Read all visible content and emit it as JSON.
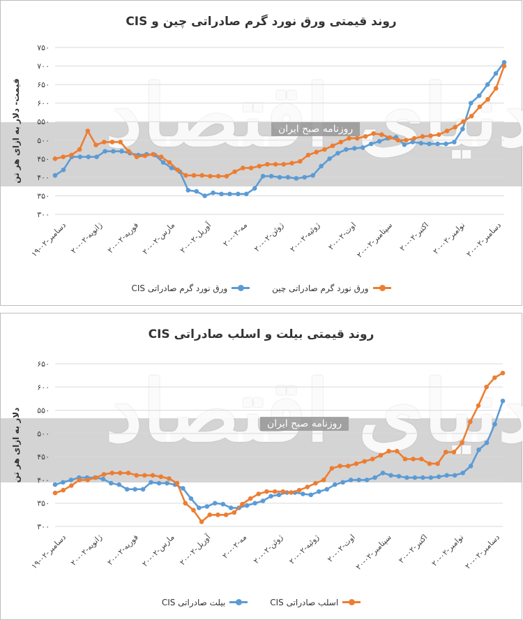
{
  "colors": {
    "blue": "#5b9bd5",
    "orange": "#ed7d31",
    "grid": "#d9d9d9",
    "band": "#a6a6a6"
  },
  "watermark": {
    "banner": "روزنامه صبح ایران",
    "logo": "دنیای اقتصاد"
  },
  "chart_data": [
    {
      "type": "line",
      "title": "روند قیمتی ورق نورد گرم صادراتی چین و CIS",
      "ylabel": "قیمت- دلار به ازای هر تن",
      "ylim": [
        300,
        750
      ],
      "yticks": [
        "۳۰۰",
        "۳۵۰",
        "۴۰۰",
        "۴۵۰",
        "۵۰۰",
        "۵۵۰",
        "۶۰۰",
        "۶۵۰",
        "۷۰۰",
        "۷۵۰"
      ],
      "grid": true,
      "legend_position": "bottom",
      "x_tick_labels": [
        "۱۹-دسامبر-۰۲",
        "۲۰-ژانویه-۰۲",
        "۲۰-فوریه-۰۲",
        "۲۰-مارس-۰۲",
        "۲۰-آوریل-۰۲",
        "۲۰-مه-۰۲",
        "۲۰-ژوئن-۰۲",
        "۲۰-ژوئیه-۰۲",
        "۲۰-اوت-۰۲",
        "۲۰-سپتامبر-۰۲",
        "۲۰-اکتبر-۰۲",
        "۲۰-نوامبر-۰۲",
        "۲۰-دسامبر-۰۲"
      ],
      "series": [
        {
          "name": "ورق نورد گرم صادراتی CIS",
          "color": "#5b9bd5",
          "values": [
            405,
            420,
            455,
            455,
            455,
            455,
            470,
            470,
            470,
            465,
            460,
            462,
            460,
            440,
            425,
            415,
            365,
            362,
            350,
            358,
            355,
            355,
            355,
            355,
            370,
            403,
            403,
            400,
            400,
            397,
            400,
            405,
            430,
            450,
            465,
            475,
            478,
            480,
            490,
            497,
            505,
            508,
            488,
            495,
            492,
            490,
            490,
            490,
            495,
            530,
            600,
            620,
            650,
            680,
            710
          ]
        },
        {
          "name": "ورق نورد گرم صادراتی چین",
          "color": "#ed7d31",
          "values": [
            450,
            455,
            460,
            475,
            525,
            487,
            495,
            495,
            495,
            470,
            455,
            458,
            462,
            455,
            440,
            420,
            405,
            405,
            405,
            403,
            403,
            403,
            415,
            425,
            425,
            430,
            435,
            435,
            435,
            438,
            443,
            460,
            468,
            475,
            485,
            495,
            505,
            505,
            510,
            518,
            515,
            507,
            500,
            500,
            505,
            510,
            512,
            515,
            525,
            535,
            550,
            565,
            590,
            610,
            640,
            700
          ]
        }
      ]
    },
    {
      "type": "line",
      "title": "روند قیمتی بیلت و اسلب صادراتی CIS",
      "ylabel": "دلار به ازای هر تن",
      "ylim": [
        300,
        650
      ],
      "yticks": [
        "۳۰۰",
        "۳۵۰",
        "۴۰۰",
        "۴۵۰",
        "۵۰۰",
        "۵۵۰",
        "۶۰۰",
        "۶۵۰"
      ],
      "grid": true,
      "legend_position": "bottom",
      "x_tick_labels": [
        "۱۹-دسامبر-۰۲",
        "۲۰-ژانویه-۰۲",
        "۲۰-فوریه-۰۲",
        "۲۰-مارس-۰۲",
        "۲۰-آوریل-۰۲",
        "۲۰-مه-۰۲",
        "۲۰-ژوئن-۰۲",
        "۲۰-ژوئیه-۰۲",
        "۲۰-اوت-۰۲",
        "۲۰-سپتامبر-۰۲",
        "۲۰-اکتبر-۰۲",
        "۲۰-نوامبر-۰۲",
        "۲۰-دسامبر-۰۲"
      ],
      "series": [
        {
          "name": "بیلت صادراتی CIS",
          "color": "#5b9bd5",
          "values": [
            390,
            395,
            400,
            405,
            405,
            405,
            402,
            393,
            390,
            380,
            380,
            380,
            395,
            393,
            393,
            390,
            382,
            360,
            340,
            343,
            350,
            348,
            340,
            340,
            345,
            350,
            355,
            365,
            368,
            373,
            373,
            370,
            368,
            375,
            380,
            390,
            395,
            400,
            400,
            400,
            405,
            415,
            410,
            408,
            405,
            405,
            405,
            405,
            407,
            410,
            410,
            415,
            430,
            465,
            480,
            520,
            570
          ]
        },
        {
          "name": "اسلب صادراتی CIS",
          "color": "#ed7d31",
          "values": [
            372,
            378,
            388,
            400,
            400,
            405,
            412,
            415,
            415,
            415,
            410,
            410,
            410,
            407,
            403,
            393,
            350,
            335,
            310,
            325,
            325,
            325,
            330,
            348,
            360,
            370,
            375,
            375,
            375,
            373,
            378,
            385,
            393,
            400,
            425,
            430,
            430,
            435,
            440,
            445,
            453,
            462,
            462,
            445,
            445,
            445,
            435,
            435,
            460,
            460,
            480,
            525,
            560,
            600,
            620,
            630
          ]
        }
      ]
    }
  ]
}
